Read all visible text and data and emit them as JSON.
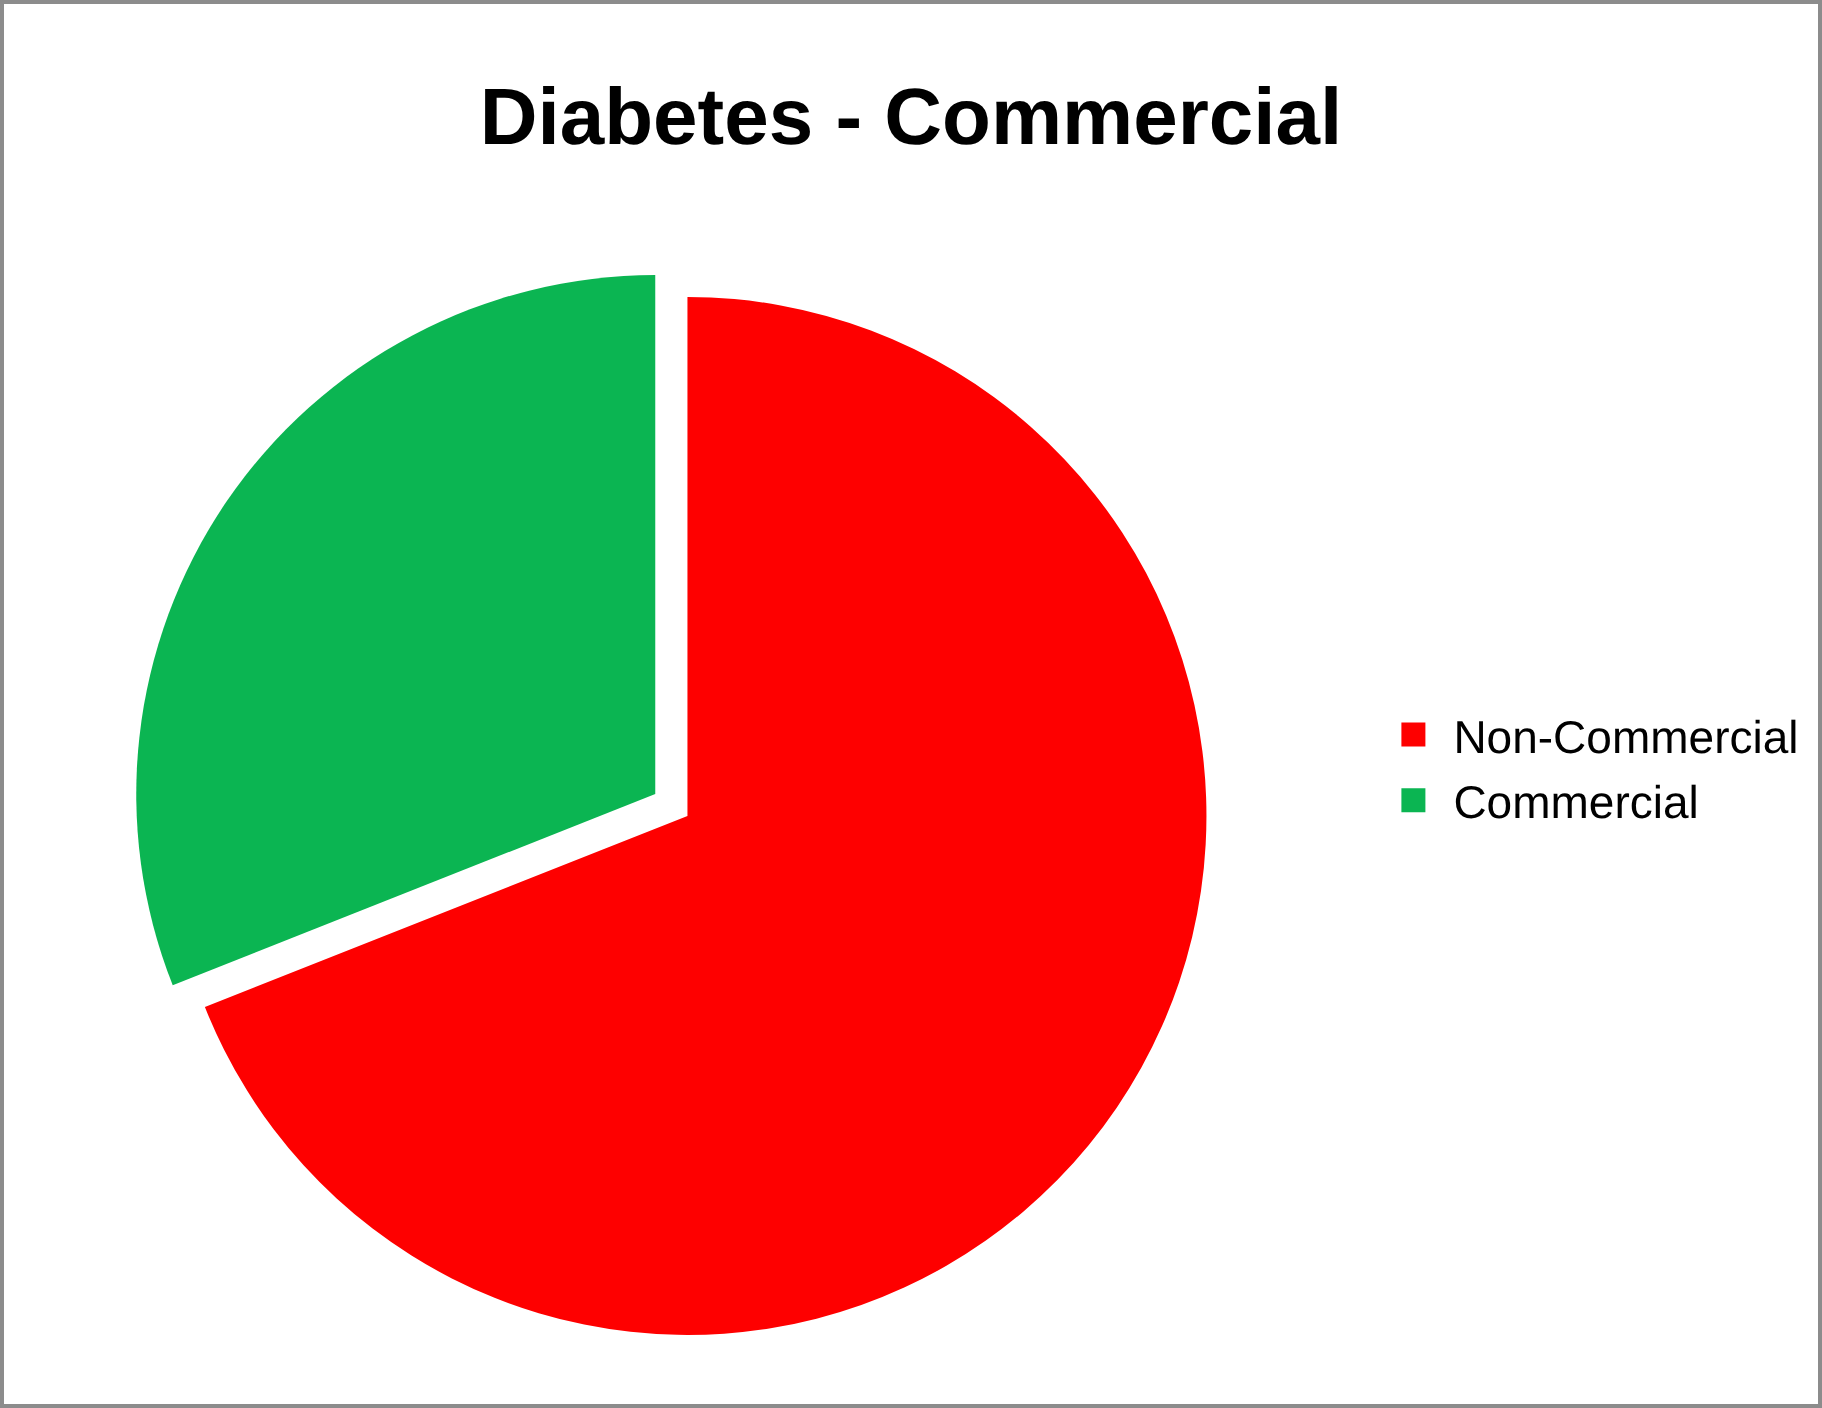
{
  "chart_data": {
    "type": "pie",
    "title": "Diabetes - Commercial",
    "categories": [
      "Non-Commercial",
      "Commercial"
    ],
    "values": [
      69,
      31
    ],
    "colors": [
      "#fe0000",
      "#0bb552"
    ],
    "legend": "right"
  }
}
